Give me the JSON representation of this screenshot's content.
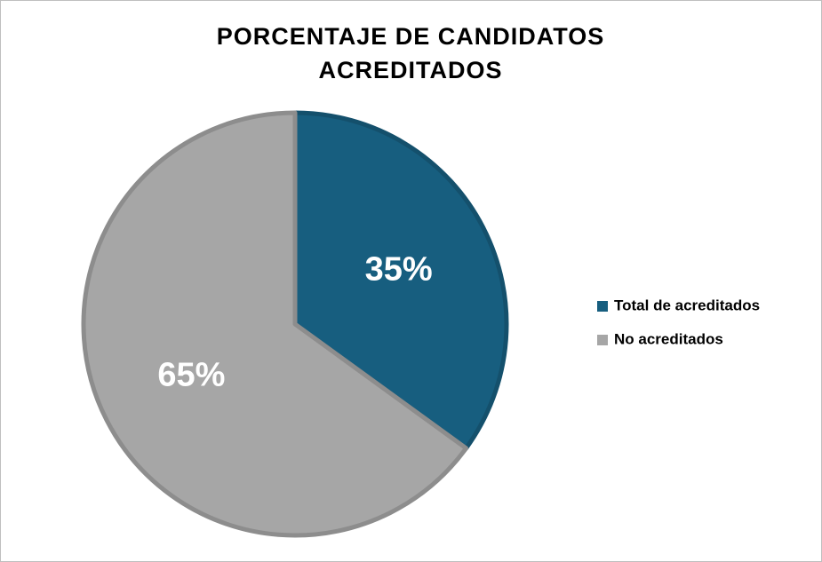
{
  "chart_data": {
    "type": "pie",
    "title": "PORCENTAJE DE CANDIDATOS ACREDITADOS",
    "categories": [
      "Total de acreditados",
      "No acreditados"
    ],
    "values": [
      35,
      65
    ],
    "value_labels": [
      "35%",
      "65%"
    ],
    "colors": [
      "#175e7f",
      "#a6a6a6"
    ],
    "legend": "right"
  }
}
